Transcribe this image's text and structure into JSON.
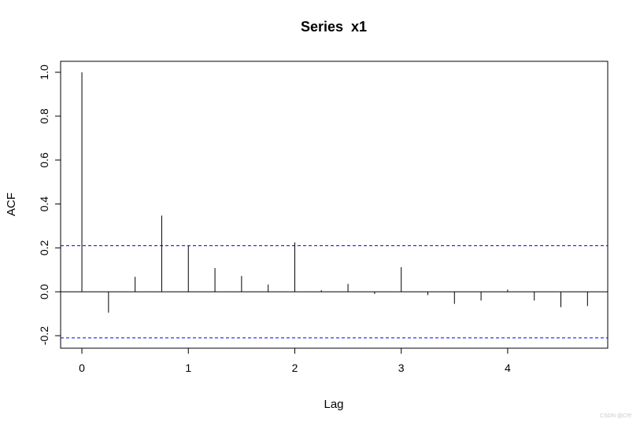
{
  "chart_data": {
    "type": "bar",
    "title": "Series  x1",
    "xlabel": "Lag",
    "ylabel": "ACF",
    "xlim": [
      -0.2,
      4.94
    ],
    "ylim": [
      -0.257,
      1.05
    ],
    "x_ticks": [
      "0",
      "1",
      "2",
      "3",
      "4"
    ],
    "y_ticks": [
      "-0.2",
      "0.0",
      "0.2",
      "0.4",
      "0.6",
      "0.8",
      "1.0"
    ],
    "lags": [
      0,
      0.25,
      0.5,
      0.75,
      1.0,
      1.25,
      1.5,
      1.75,
      2.0,
      2.25,
      2.5,
      2.75,
      3.0,
      3.25,
      3.5,
      3.75,
      4.0,
      4.25,
      4.5,
      4.75
    ],
    "acf": [
      1.0,
      -0.095,
      0.068,
      0.347,
      0.21,
      0.108,
      0.072,
      0.033,
      0.225,
      0.007,
      0.036,
      -0.01,
      0.112,
      -0.015,
      -0.055,
      -0.04,
      0.01,
      -0.04,
      -0.07,
      -0.065
    ],
    "confidence_bound": 0.21,
    "grid": false,
    "colors": {
      "bars": "#000000",
      "confidence": "#0000ff",
      "axis": "#000000"
    }
  },
  "watermark": "CSDN @C叶"
}
